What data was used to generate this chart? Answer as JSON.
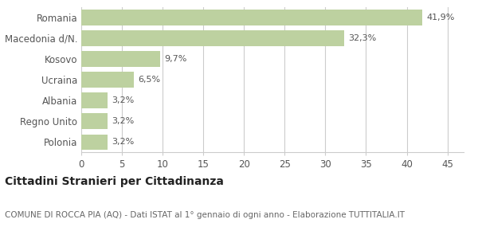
{
  "categories": [
    "Polonia",
    "Regno Unito",
    "Albania",
    "Ucraina",
    "Kosovo",
    "Macedonia d/N.",
    "Romania"
  ],
  "values": [
    3.2,
    3.2,
    3.2,
    6.5,
    9.7,
    32.3,
    41.9
  ],
  "labels": [
    "3,2%",
    "3,2%",
    "3,2%",
    "6,5%",
    "9,7%",
    "32,3%",
    "41,9%"
  ],
  "bar_color": "#bdd1a0",
  "background_color": "#ffffff",
  "xlim": [
    0,
    47
  ],
  "xticks": [
    0,
    5,
    10,
    15,
    20,
    25,
    30,
    35,
    40,
    45
  ],
  "grid_color": "#cccccc",
  "title_bold": "Cittadini Stranieri per Cittadinanza",
  "subtitle": "COMUNE DI ROCCA PIA (AQ) - Dati ISTAT al 1° gennaio di ogni anno - Elaborazione TUTTITALIA.IT",
  "title_fontsize": 10,
  "subtitle_fontsize": 7.5,
  "label_fontsize": 8,
  "tick_fontsize": 8.5,
  "bar_height": 0.75
}
